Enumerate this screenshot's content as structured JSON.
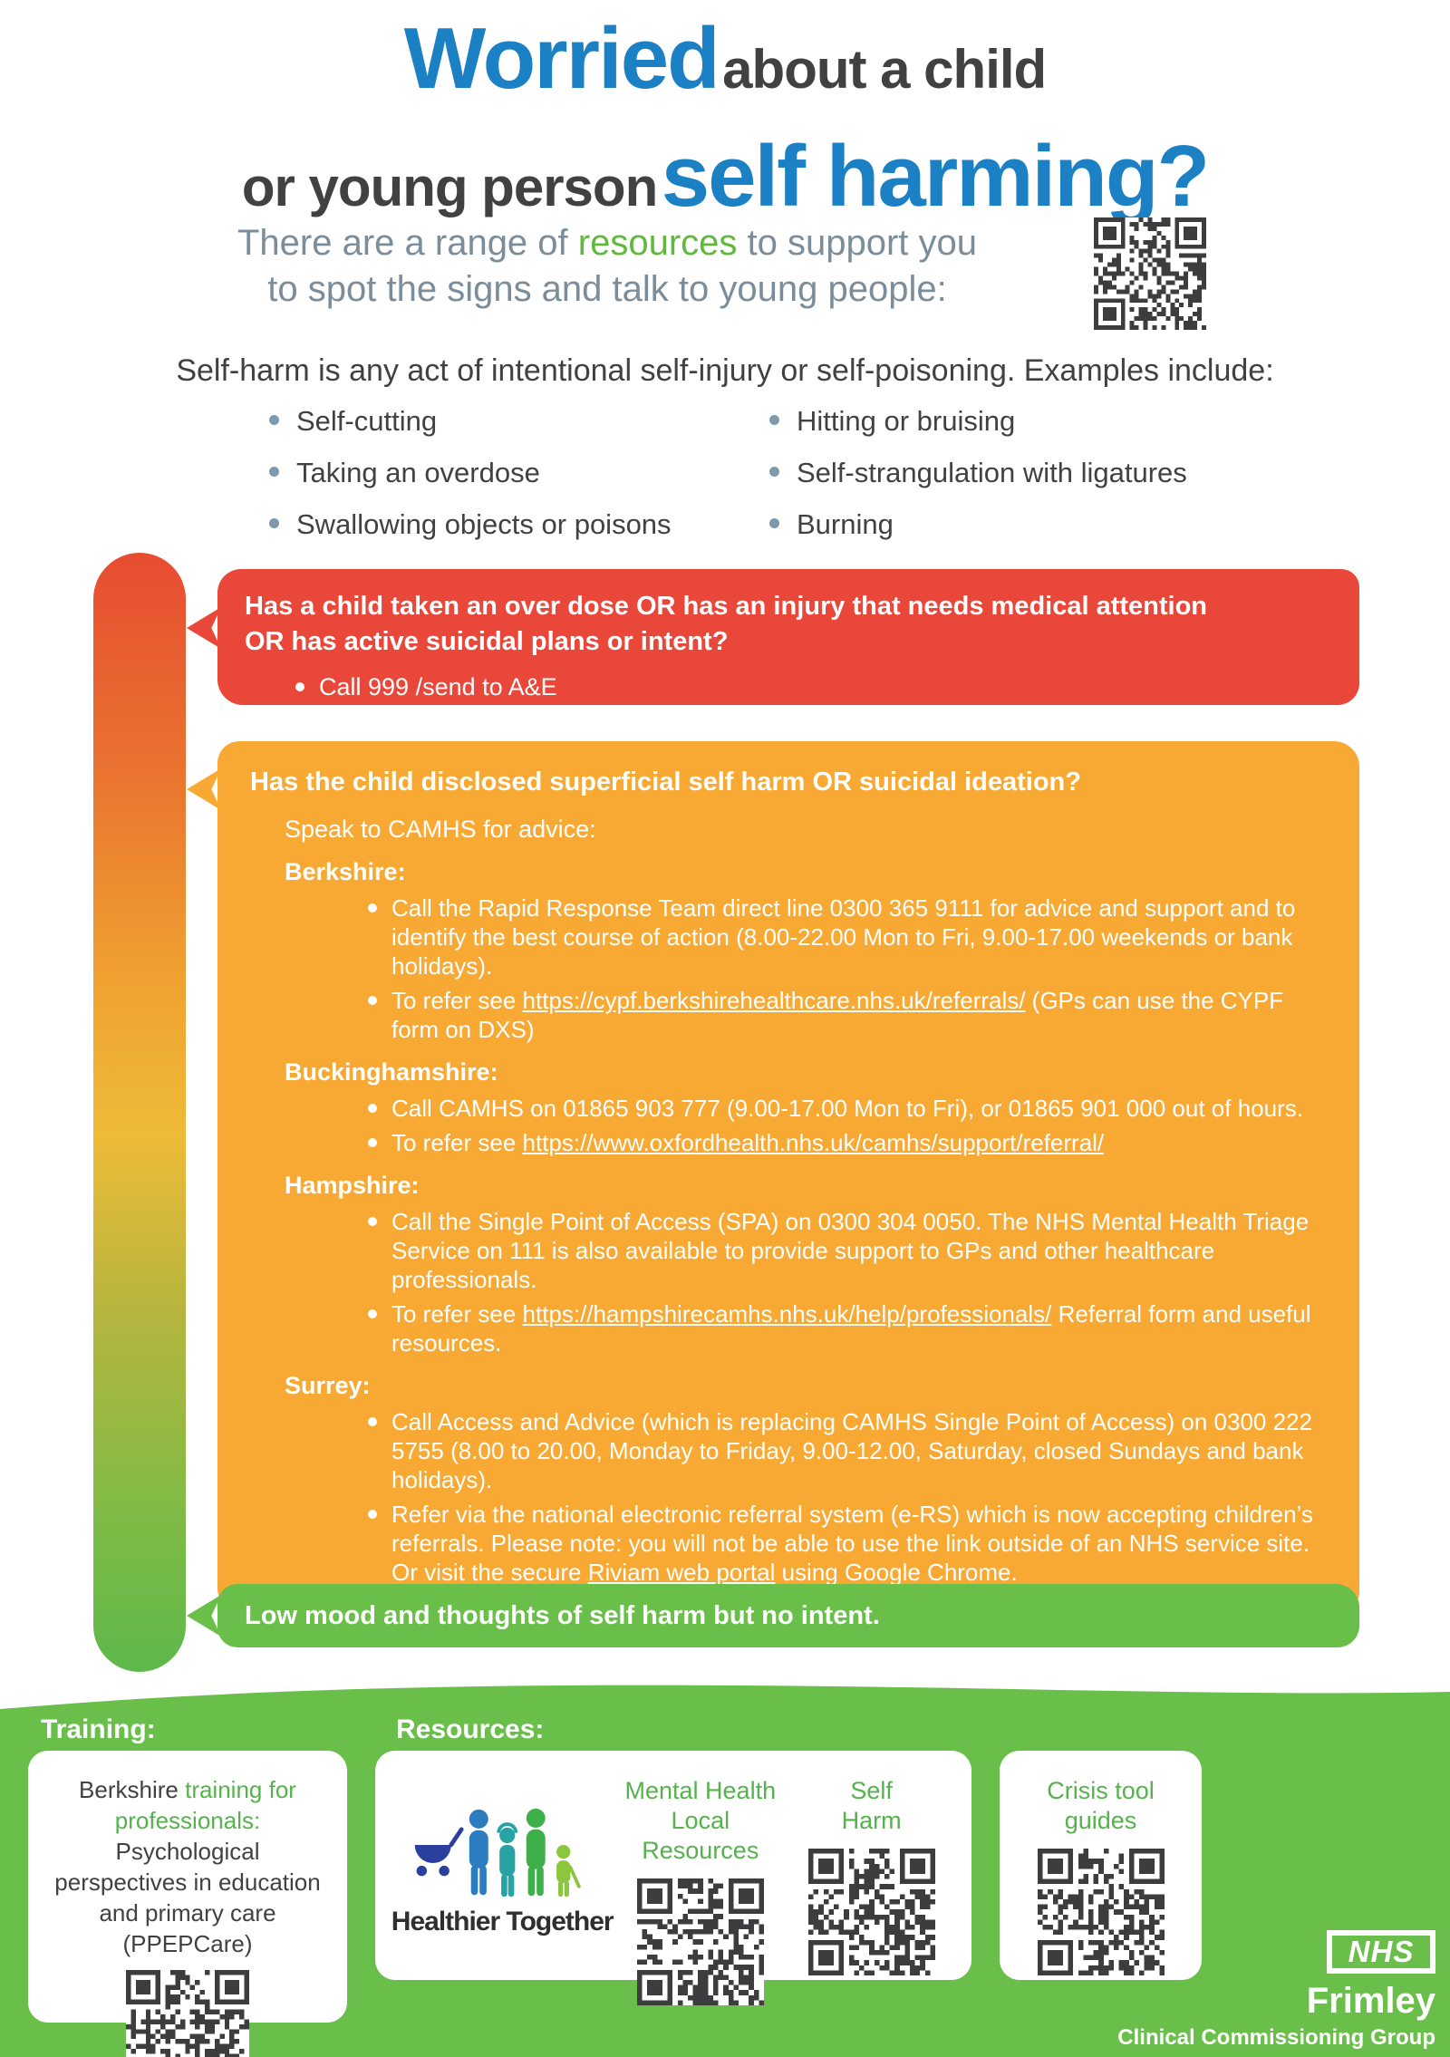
{
  "header": {
    "title_blue1": "Worried",
    "title_dark1": "about a child",
    "title_dark2": "or young person",
    "title_blue2": "self harming?",
    "subtitle_pre": "There are a range of ",
    "subtitle_green": "resources",
    "subtitle_post": " to support you",
    "subtitle_line2": "to spot the signs and talk to young people:",
    "qr_label": "resources-qr-code"
  },
  "definition": {
    "intro": "Self-harm is any act of intentional self-injury or self-poisoning. Examples include:",
    "examples_col1": [
      "Self-cutting",
      "Taking an overdose",
      "Swallowing objects or poisons"
    ],
    "examples_col2": [
      "Hitting or bruising",
      "Self-strangulation with ligatures",
      "Burning"
    ]
  },
  "triage": {
    "red": {
      "heading_line1": "Has a child taken an over dose OR has an injury that needs medical attention",
      "heading_line2": "OR has active suicidal plans or intent?",
      "bullets": [
        "Call 999 /send to A&E"
      ]
    },
    "amber": {
      "heading": "Has the child disclosed superficial self harm OR suicidal ideation?",
      "intro": "Speak to CAMHS for advice:",
      "regions": [
        {
          "name": "Berkshire:",
          "bullets": [
            {
              "pre": "Call the Rapid Response Team direct line 0300 365 9111 for advice and support and to identify the best course of action (8.00-22.00 Mon to Fri, 9.00-17.00 weekends or bank holidays)."
            },
            {
              "pre": "To refer see ",
              "link": "https://cypf.berkshirehealthcare.nhs.uk/referrals/",
              "post": " (GPs can use the CYPF form on DXS)"
            }
          ]
        },
        {
          "name": "Buckinghamshire:",
          "bullets": [
            {
              "pre": "Call CAMHS on 01865 903 777 (9.00-17.00 Mon to Fri), or 01865 901 000 out of hours."
            },
            {
              "pre": "To refer see ",
              "link": "https://www.oxfordhealth.nhs.uk/camhs/support/referral/",
              "post": ""
            }
          ]
        },
        {
          "name": "Hampshire:",
          "bullets": [
            {
              "pre": "Call the Single Point of Access (SPA) on 0300 304 0050. The NHS Mental Health Triage Service on 111 is also available to provide support to GPs and other healthcare professionals."
            },
            {
              "pre": "To refer see ",
              "link": "https://hampshirecamhs.nhs.uk/help/professionals/",
              "post": " Referral form and useful resources."
            }
          ]
        },
        {
          "name": "Surrey:",
          "bullets": [
            {
              "pre": "Call Access and Advice (which is replacing CAMHS Single Point of Access) on 0300 222 5755 (8.00 to 20.00, Monday to Friday, 9.00-12.00, Saturday, closed Sundays and bank holidays)."
            },
            {
              "pre": "Refer via the national electronic referral system (e-RS) which is now accepting children’s referrals. Please note: you will not be able to use the link outside of an NHS service site. Or visit the secure ",
              "link": "Riviam web portal",
              "post": " using Google Chrome."
            }
          ]
        }
      ]
    },
    "green": {
      "heading": "Low mood and thoughts of self harm but no intent."
    }
  },
  "footer": {
    "training_label": "Training:",
    "resources_label": "Resources:",
    "training_card": {
      "seg_dark1": "Berkshire ",
      "seg_green": "training for professionals: ",
      "seg_dark2": "Psychological perspectives in education and primary care (PPEPCare)",
      "qr_label": "training-qr-code"
    },
    "resources_card": {
      "logo_text": "Healthier Together",
      "qr1_label_line1": "Mental Health",
      "qr1_label_line2": "Local Resources",
      "qr2_label_line1": "Self",
      "qr2_label_line2": "Harm"
    },
    "crisis_card": {
      "label_line1": "Crisis tool",
      "label_line2": "guides",
      "qr_label": "crisis-tool-qr-code"
    },
    "nhs_logo": "NHS",
    "org_line1": "Frimley",
    "org_line2": "Clinical Commissioning Group"
  },
  "colors": {
    "blue": "#1b80c4",
    "dark_text": "#414042",
    "subtitle_gray": "#7b8d9b",
    "red": "#e9473a",
    "amber": "#f7a933",
    "green": "#6abf4b",
    "green_text": "#55b24c"
  }
}
